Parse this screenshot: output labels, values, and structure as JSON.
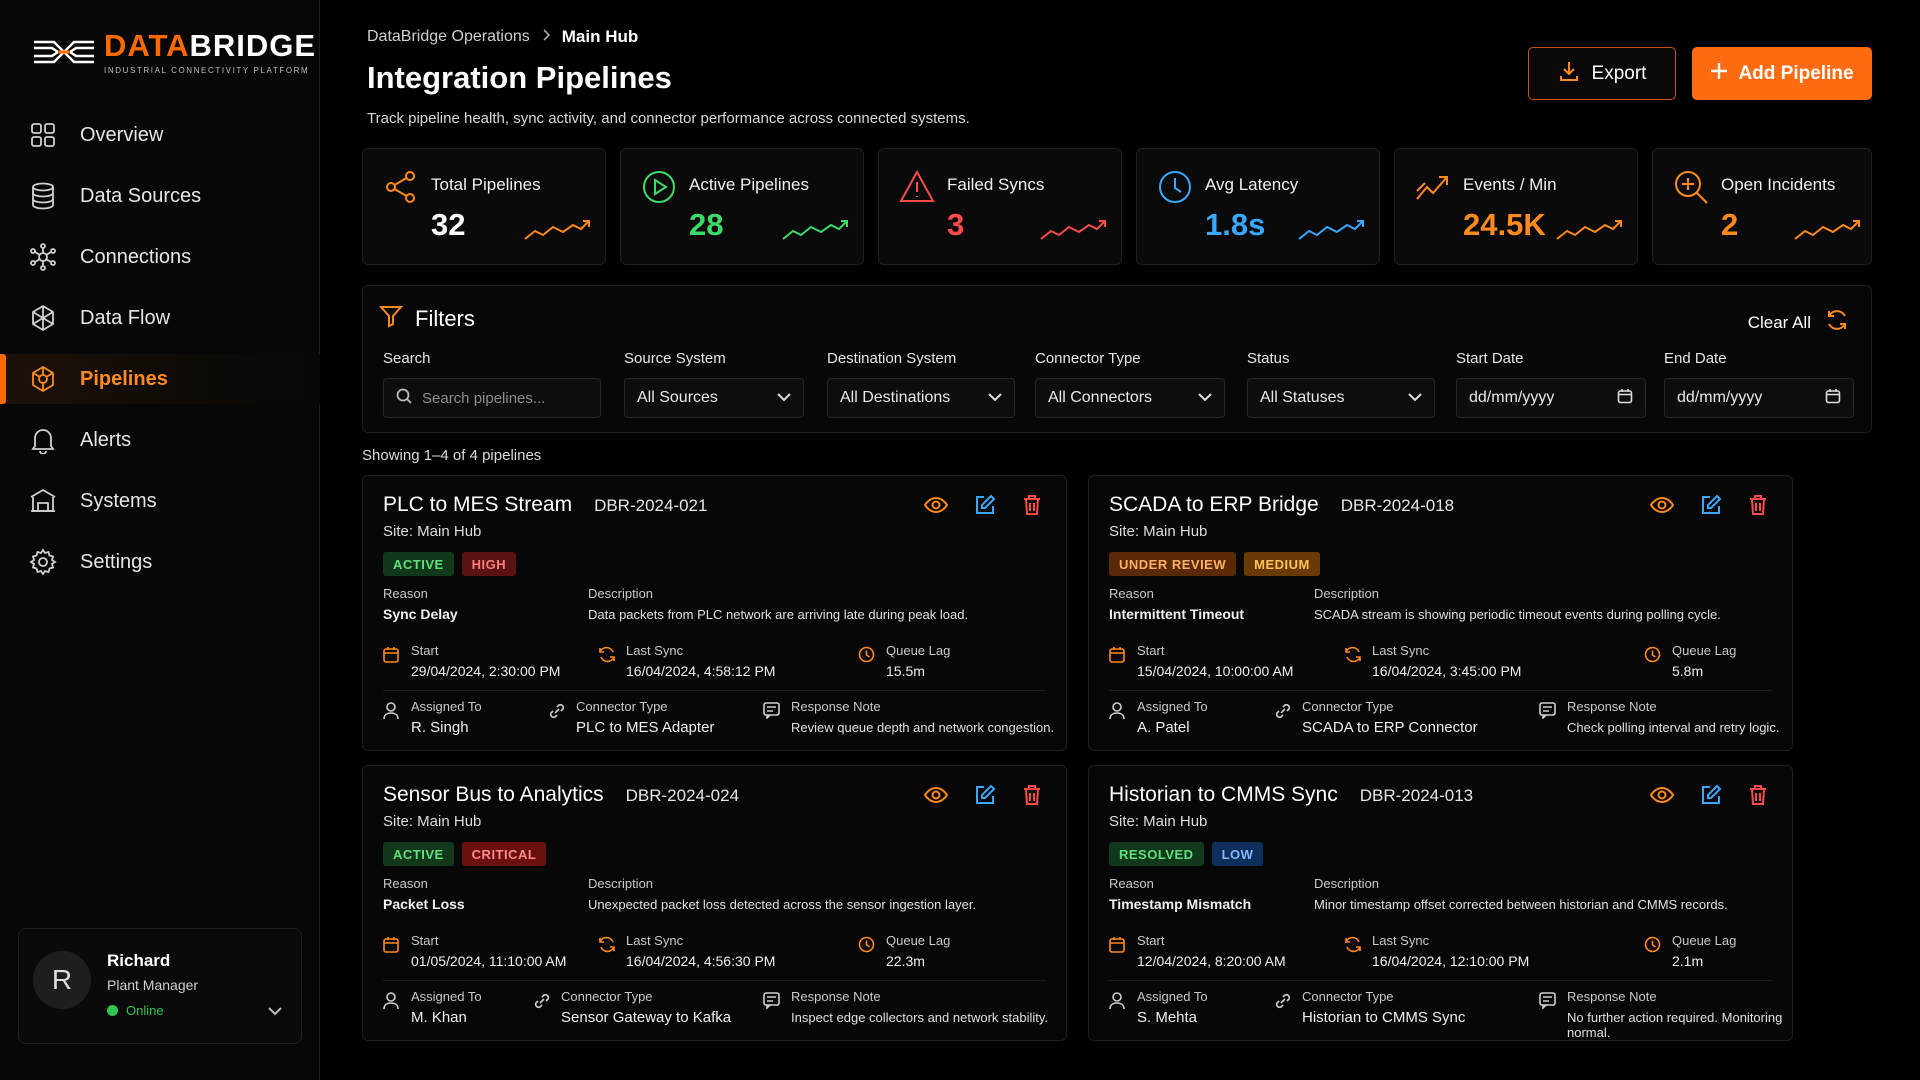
{
  "brand": {
    "name_a": "DATA",
    "name_b": "BRIDGE",
    "tagline": "INDUSTRIAL CONNECTIVITY PLATFORM",
    "accent": "#ff6a00"
  },
  "sidebar": {
    "items": [
      {
        "label": "Overview",
        "icon": "grid-icon"
      },
      {
        "label": "Data Sources",
        "icon": "database-icon"
      },
      {
        "label": "Connections",
        "icon": "network-icon"
      },
      {
        "label": "Data Flow",
        "icon": "flow-icon"
      },
      {
        "label": "Pipelines",
        "icon": "pipeline-icon",
        "active": true
      },
      {
        "label": "Alerts",
        "icon": "bell-icon"
      },
      {
        "label": "Systems",
        "icon": "building-icon"
      },
      {
        "label": "Settings",
        "icon": "gear-icon"
      }
    ],
    "user": {
      "initial": "R",
      "name": "Richard",
      "role": "Plant Manager",
      "status": "Online"
    }
  },
  "header": {
    "breadcrumb": [
      "DataBridge Operations",
      "Main Hub"
    ],
    "title": "Integration Pipelines",
    "subtitle": "Track pipeline health, sync activity, and connector performance across connected systems.",
    "export_label": "Export",
    "add_label": "Add Pipeline"
  },
  "stats": [
    {
      "label": "Total Pipelines",
      "value": "32",
      "color": "#ffffff",
      "icon": "share-icon"
    },
    {
      "label": "Active Pipelines",
      "value": "28",
      "color": "#3ddc6a",
      "icon": "play-circle-icon"
    },
    {
      "label": "Failed Syncs",
      "value": "3",
      "color": "#ff4a4a",
      "icon": "warning-icon"
    },
    {
      "label": "Avg Latency",
      "value": "1.8s",
      "color": "#3aa8ff",
      "icon": "clock-icon"
    },
    {
      "label": "Events / Min",
      "value": "24.5K",
      "color": "#ff8a1f",
      "icon": "trend-icon"
    },
    {
      "label": "Open Incidents",
      "value": "2",
      "color": "#ff8a1f",
      "icon": "search-plus-icon"
    }
  ],
  "filters": {
    "title": "Filters",
    "clear_label": "Clear All",
    "search_label": "Search",
    "search_placeholder": "Search pipelines...",
    "source_label": "Source System",
    "source_value": "All Sources",
    "dest_label": "Destination System",
    "dest_value": "All Destinations",
    "connector_label": "Connector Type",
    "connector_value": "All Connectors",
    "status_label": "Status",
    "status_value": "All Statuses",
    "start_label": "Start Date",
    "start_value": "dd/mm/yyyy",
    "end_label": "End Date",
    "end_value": "dd/mm/yyyy"
  },
  "showing": "Showing 1–4 of 4 pipelines",
  "field_labels": {
    "reason": "Reason",
    "description": "Description",
    "start": "Start",
    "last_sync": "Last Sync",
    "queue_lag": "Queue Lag",
    "assigned": "Assigned To",
    "connector": "Connector Type",
    "response": "Response Note"
  },
  "cards": [
    {
      "name": "PLC to MES Stream",
      "id": "DBR-2024-021",
      "site": "Site: Main Hub",
      "status": "ACTIVE",
      "priority": "HIGH",
      "reason": "Sync Delay",
      "description": "Data packets from PLC network are arriving late during peak load.",
      "start": "29/04/2024, 2:30:00 PM",
      "last_sync": "16/04/2024, 4:58:12 PM",
      "queue_lag": "15.5m",
      "assigned": "R. Singh",
      "connector": "PLC to MES Adapter",
      "response": "Review queue depth and network congestion."
    },
    {
      "name": "SCADA to ERP Bridge",
      "id": "DBR-2024-018",
      "site": "Site: Main Hub",
      "status": "UNDER REVIEW",
      "priority": "MEDIUM",
      "reason": "Intermittent Timeout",
      "description": "SCADA stream is showing periodic timeout events during polling cycle.",
      "start": "15/04/2024, 10:00:00 AM",
      "last_sync": "16/04/2024, 3:45:00 PM",
      "queue_lag": "5.8m",
      "assigned": "A. Patel",
      "connector": "SCADA to ERP Connector",
      "response": "Check polling interval and retry logic."
    },
    {
      "name": "Sensor Bus to Analytics",
      "id": "DBR-2024-024",
      "site": "Site: Main Hub",
      "status": "ACTIVE",
      "priority": "CRITICAL",
      "reason": "Packet Loss",
      "description": "Unexpected packet loss detected across the sensor ingestion layer.",
      "start": "01/05/2024, 11:10:00 AM",
      "last_sync": "16/04/2024, 4:56:30 PM",
      "queue_lag": "22.3m",
      "assigned": "M. Khan",
      "connector": "Sensor Gateway to Kafka",
      "response": "Inspect edge collectors and network stability."
    },
    {
      "name": "Historian to CMMS Sync",
      "id": "DBR-2024-013",
      "site": "Site: Main Hub",
      "status": "RESOLVED",
      "priority": "LOW",
      "reason": "Timestamp Mismatch",
      "description": "Minor timestamp offset corrected between historian and CMMS records.",
      "start": "12/04/2024, 8:20:00 AM",
      "last_sync": "16/04/2024, 12:10:00 PM",
      "queue_lag": "2.1m",
      "assigned": "S. Mehta",
      "connector": "Historian to CMMS Sync",
      "response": "No further action required. Monitoring normal."
    }
  ]
}
